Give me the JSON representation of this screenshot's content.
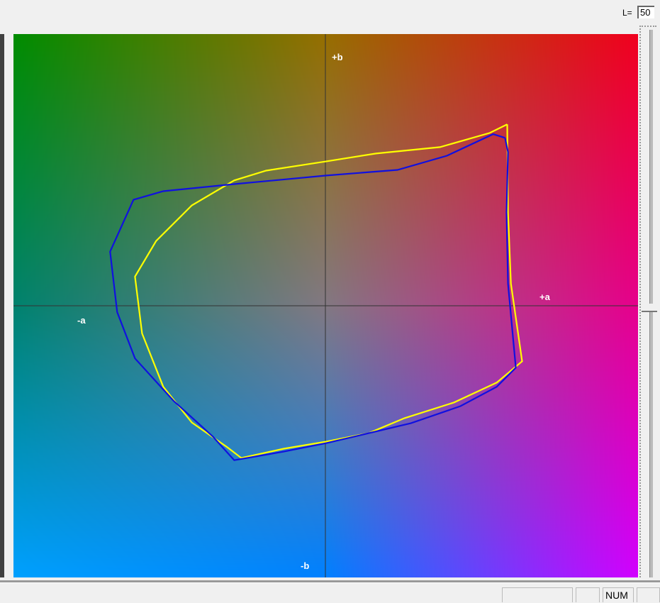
{
  "lightness": {
    "label": "L=",
    "value": "50"
  },
  "status_bar": {
    "num": "NUM"
  },
  "chart_data": {
    "type": "line",
    "title": "",
    "axis_labels": {
      "plus_b": "+b",
      "minus_b": "-b",
      "plus_a": "+a",
      "minus_a": "-a"
    },
    "xlim": [
      -128,
      128
    ],
    "ylim": [
      -111,
      111
    ],
    "grid": false,
    "background": "Lab a*b* color plane at L=50",
    "series": [
      {
        "color": "#ffff00",
        "points": [
          [
            74.4,
            74.1
          ],
          [
            74.7,
            38.1
          ],
          [
            75.9,
            9.0
          ],
          [
            80.5,
            -22.7
          ],
          [
            70.1,
            -31.4
          ],
          [
            52.6,
            -39.5
          ],
          [
            32.3,
            -45.9
          ],
          [
            17.7,
            -52.0
          ],
          [
            0.3,
            -55.5
          ],
          [
            -17.2,
            -58.4
          ],
          [
            -34.6,
            -62.2
          ],
          [
            -40.4,
            -57.8
          ],
          [
            -54.9,
            -47.7
          ],
          [
            -66.6,
            -33.1
          ],
          [
            -75.3,
            -11.3
          ],
          [
            -78.2,
            11.9
          ],
          [
            -69.5,
            26.5
          ],
          [
            -54.9,
            41.0
          ],
          [
            -37.5,
            51.2
          ],
          [
            -24.4,
            55.2
          ],
          [
            0.3,
            59.0
          ],
          [
            20.6,
            62.2
          ],
          [
            46.8,
            64.8
          ],
          [
            67.2,
            70.6
          ],
          [
            74.4,
            74.1
          ]
        ]
      },
      {
        "color": "#1010e0",
        "points": [
          [
            73.5,
            68.6
          ],
          [
            74.7,
            62.8
          ],
          [
            74.1,
            38.1
          ],
          [
            74.7,
            9.0
          ],
          [
            77.9,
            -25.3
          ],
          [
            70.1,
            -33.1
          ],
          [
            55.2,
            -41.0
          ],
          [
            34.9,
            -48.0
          ],
          [
            0.3,
            -56.1
          ],
          [
            -17.2,
            -59.6
          ],
          [
            -37.5,
            -63.1
          ],
          [
            -46.2,
            -53.5
          ],
          [
            -62.2,
            -39.0
          ],
          [
            -78.2,
            -21.5
          ],
          [
            -85.5,
            -2.6
          ],
          [
            -88.4,
            22.1
          ],
          [
            -78.8,
            43.3
          ],
          [
            -66.6,
            46.8
          ],
          [
            -37.5,
            49.7
          ],
          [
            0.3,
            53.2
          ],
          [
            29.4,
            55.5
          ],
          [
            49.7,
            61.3
          ],
          [
            68.6,
            70.1
          ],
          [
            73.5,
            68.6
          ]
        ]
      }
    ]
  }
}
